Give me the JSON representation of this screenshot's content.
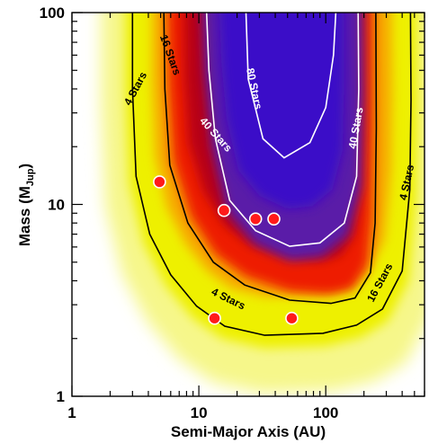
{
  "chart_data": {
    "type": "contour",
    "title": "",
    "xlabel": "Semi-Major Axis (AU)",
    "ylabel": "Mass (M",
    "ylabel_subscript": "Jup",
    "ylabel_close": ")",
    "xscale": "log",
    "yscale": "log",
    "xlim": [
      1,
      600
    ],
    "ylim": [
      1,
      100
    ],
    "x_ticks": [
      {
        "value": 1,
        "label": "1"
      },
      {
        "value": 10,
        "label": "10"
      },
      {
        "value": 100,
        "label": "100"
      }
    ],
    "y_ticks": [
      {
        "value": 1,
        "label": "1"
      },
      {
        "value": 10,
        "label": "10"
      },
      {
        "value": 100,
        "label": "100"
      }
    ],
    "grid": false,
    "colors": {
      "frame": "#000000",
      "outer_glow": "#f6f78a",
      "yellow": "#eef000",
      "orange": "#f7a800",
      "red": "#ee1c00",
      "dark_red": "#b80018",
      "violet": "#5a1aa8",
      "blue": "#3a10c8",
      "contour_dark": "#000000",
      "contour_light": "#ffffff",
      "point": "#ff1a1a"
    },
    "contours": [
      {
        "label": "4 Stars",
        "line_color": "#000000",
        "label_positions": [
          {
            "x": 3.2,
            "y": 40,
            "angle": -62
          },
          {
            "x": 17,
            "y": 3.2,
            "angle": 26
          },
          {
            "x": 440,
            "y": 13,
            "angle": -78
          }
        ],
        "path": [
          [
            3.0,
            100
          ],
          [
            3.0,
            40
          ],
          [
            3.2,
            14
          ],
          [
            4.1,
            7
          ],
          [
            6.0,
            4.3
          ],
          [
            9.6,
            2.95
          ],
          [
            16,
            2.32
          ],
          [
            33,
            2.08
          ],
          [
            95,
            2.13
          ],
          [
            175,
            2.35
          ],
          [
            280,
            2.85
          ],
          [
            400,
            4.5
          ],
          [
            460,
            12
          ],
          [
            470,
            35
          ],
          [
            465,
            100
          ]
        ]
      },
      {
        "label": "16 Stars",
        "line_color": "#000000",
        "label_positions": [
          {
            "x": 5.9,
            "y": 60,
            "angle": 70
          },
          {
            "x": 270,
            "y": 3.9,
            "angle": -62
          }
        ],
        "path": [
          [
            5.3,
            100
          ],
          [
            5.4,
            40
          ],
          [
            5.9,
            16
          ],
          [
            8.2,
            8
          ],
          [
            13,
            5.0
          ],
          [
            23,
            3.8
          ],
          [
            52,
            3.17
          ],
          [
            110,
            3.05
          ],
          [
            170,
            3.25
          ],
          [
            225,
            4.4
          ],
          [
            245,
            8
          ],
          [
            250,
            25
          ],
          [
            248,
            100
          ]
        ]
      },
      {
        "label": "40 Stars",
        "line_color": "#ffffff",
        "label_positions": [
          {
            "x": 13.5,
            "y": 23,
            "angle": 48
          },
          {
            "x": 175,
            "y": 25,
            "angle": -80
          }
        ],
        "path": [
          [
            11.5,
            100
          ],
          [
            12.0,
            50
          ],
          [
            13.5,
            22
          ],
          [
            17.5,
            10.5
          ],
          [
            28,
            7.3
          ],
          [
            52,
            6.05
          ],
          [
            90,
            6.3
          ],
          [
            140,
            8
          ],
          [
            175,
            14
          ],
          [
            182,
            40
          ],
          [
            180,
            100
          ]
        ]
      },
      {
        "label": "80 Stars",
        "line_color": "#ffffff",
        "label_positions": [
          {
            "x": 27,
            "y": 40,
            "angle": 78
          }
        ],
        "path": [
          [
            23.5,
            100
          ],
          [
            24.5,
            45
          ],
          [
            32,
            22
          ],
          [
            47,
            17.5
          ],
          [
            75,
            21
          ],
          [
            100,
            32
          ],
          [
            115,
            60
          ],
          [
            120,
            100
          ]
        ]
      }
    ],
    "points": [
      {
        "x": 4.9,
        "y": 13.1
      },
      {
        "x": 15.8,
        "y": 9.3
      },
      {
        "x": 28.0,
        "y": 8.4
      },
      {
        "x": 39.0,
        "y": 8.4
      },
      {
        "x": 13.3,
        "y": 2.55
      },
      {
        "x": 54.0,
        "y": 2.55
      }
    ]
  }
}
